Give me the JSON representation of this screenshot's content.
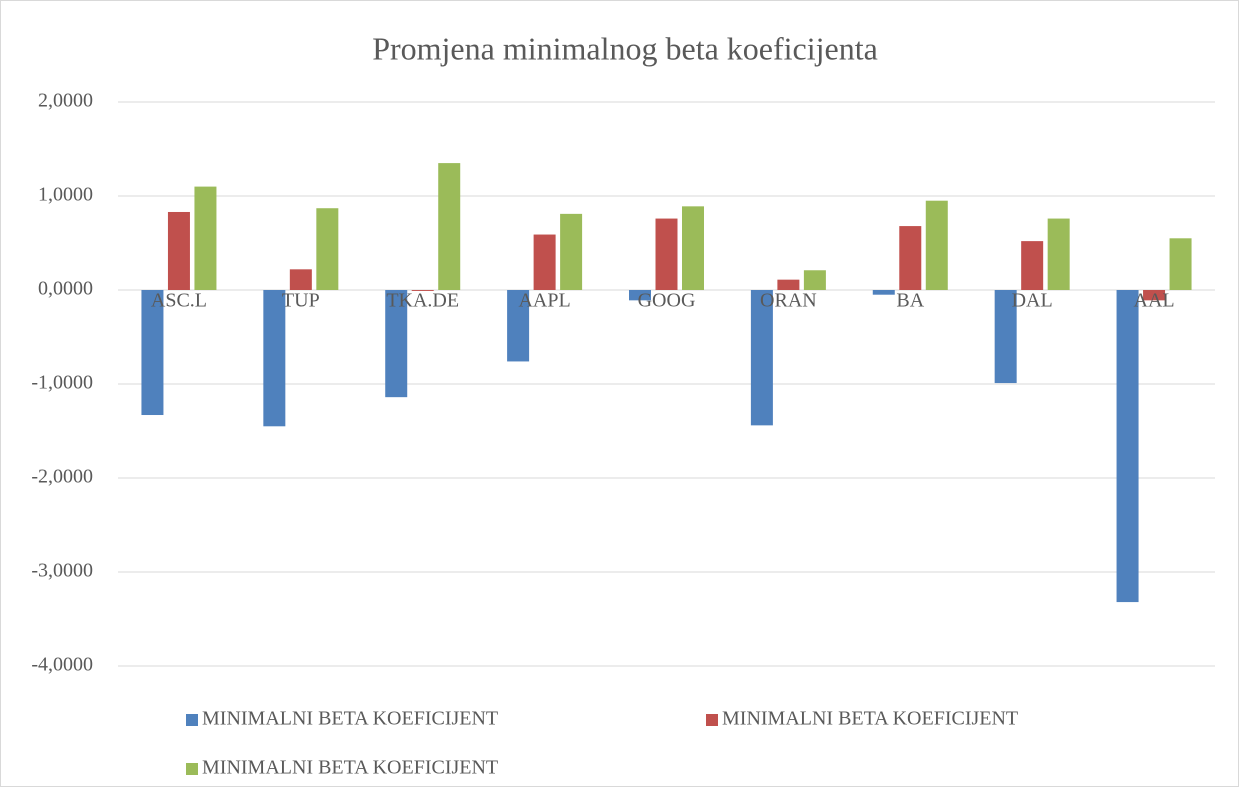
{
  "chart_data": {
    "type": "bar",
    "title": "Promjena minimalnog beta koeficijenta",
    "categories": [
      "ASC.L",
      "TUP",
      "TKA.DE",
      "AAPL",
      "GOOG",
      "ORAN",
      "BA",
      "DAL",
      "AAL"
    ],
    "series": [
      {
        "name": "MINIMALNI BETA KOEFICIJENT",
        "color": "#4f81bd",
        "values": [
          -1.33,
          -1.45,
          -1.14,
          -0.76,
          -0.11,
          -1.44,
          -0.05,
          -0.99,
          -3.32
        ]
      },
      {
        "name": "MINIMALNI BETA KOEFICIJENT",
        "color": "#c0504d",
        "values": [
          0.83,
          0.22,
          -0.01,
          0.59,
          0.76,
          0.11,
          0.68,
          0.52,
          -0.11
        ]
      },
      {
        "name": "MINIMALNI BETA KOEFICIJENT",
        "color": "#9bbb59",
        "values": [
          1.1,
          0.87,
          1.35,
          0.81,
          0.89,
          0.21,
          0.95,
          0.76,
          0.55
        ]
      }
    ],
    "ylim": [
      -4,
      2
    ],
    "yticks": [
      {
        "value": -4,
        "label": "-4,0000"
      },
      {
        "value": -3,
        "label": "-3,0000"
      },
      {
        "value": -2,
        "label": "-2,0000"
      },
      {
        "value": -1,
        "label": "-1,0000"
      },
      {
        "value": 0,
        "label": "0,0000"
      },
      {
        "value": 1,
        "label": "1,0000"
      },
      {
        "value": 2,
        "label": "2,0000"
      }
    ],
    "grid": true,
    "legend": "bottom"
  }
}
